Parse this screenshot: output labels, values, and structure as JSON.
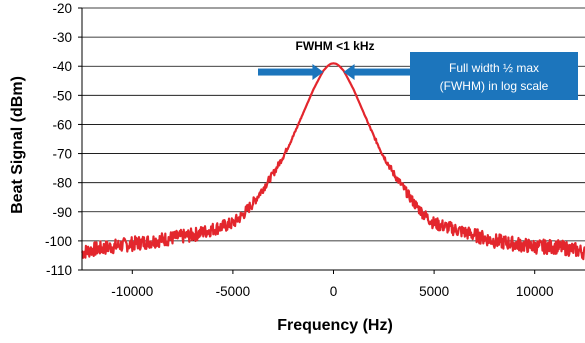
{
  "chart_data": {
    "type": "line",
    "xlabel": "Frequency (Hz)",
    "ylabel": "Beat Signal (dBm)",
    "xlim": [
      -12500,
      12500
    ],
    "ylim": [
      -110,
      -20
    ],
    "x_ticks": [
      -10000,
      -5000,
      0,
      5000,
      10000
    ],
    "y_ticks": [
      -20,
      -30,
      -40,
      -50,
      -60,
      -70,
      -80,
      -90,
      -100,
      -110
    ],
    "grid": "horizontal",
    "series": [
      {
        "color": "#e3262d",
        "x": [
          -12500,
          -12000,
          -11000,
          -10000,
          -9000,
          -8000,
          -7000,
          -6000,
          -5000,
          -4500,
          -4000,
          -3500,
          -3000,
          -2500,
          -2000,
          -1500,
          -1000,
          -700,
          -500,
          -300,
          -150,
          0,
          150,
          300,
          500,
          700,
          1000,
          1500,
          2000,
          2500,
          3000,
          3500,
          4000,
          4500,
          5000,
          6000,
          7000,
          8000,
          9000,
          10000,
          11000,
          12000,
          12500
        ],
        "y": [
          -104,
          -103,
          -102,
          -101,
          -100,
          -99,
          -98,
          -96,
          -94,
          -91,
          -87,
          -82,
          -77,
          -71,
          -64,
          -56,
          -48,
          -44,
          -41.5,
          -40,
          -39.2,
          -39,
          -39.2,
          -40,
          -41.5,
          -44,
          -48,
          -56,
          -64,
          -71,
          -77,
          -82,
          -87,
          -91,
          -94,
          -96,
          -98,
          -100,
          -101,
          -102,
          -102,
          -103,
          -104
        ],
        "noise_db": 2.5
      }
    ],
    "annotations": [
      {
        "text": "FWHM <1 kHz",
        "x": 0,
        "y": -34
      }
    ],
    "callout": {
      "line1": "Full width ½ max",
      "line2": "(FWHM) in log scale",
      "fill": "#1c75bc"
    },
    "arrow_color": "#1c75bc",
    "fwhm_level": -42,
    "fwhm_half_width": 500
  }
}
